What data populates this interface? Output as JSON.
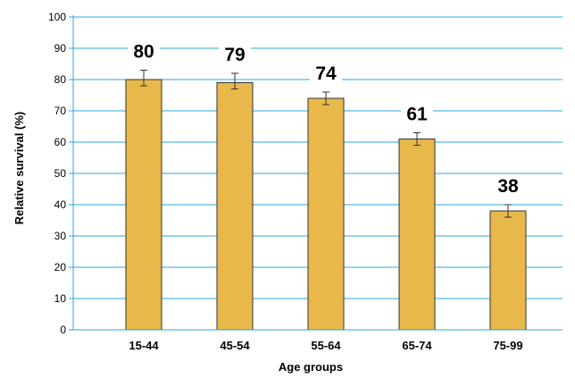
{
  "chart_data": {
    "type": "bar",
    "categories": [
      "15-44",
      "45-54",
      "55-64",
      "65-74",
      "75-99"
    ],
    "values": [
      80,
      79,
      74,
      61,
      38
    ],
    "value_labels": [
      "80",
      "79",
      "74",
      "61",
      "38"
    ],
    "error_low": [
      78,
      77,
      72,
      59,
      36
    ],
    "error_high": [
      83,
      82,
      76,
      63,
      40
    ],
    "xlabel": "Age groups",
    "ylabel": "Relative survival (%)",
    "ylim": [
      0,
      100
    ],
    "yticks": [
      0,
      10,
      20,
      30,
      40,
      50,
      60,
      70,
      80,
      90,
      100
    ],
    "ytick_labels": [
      "0",
      "10",
      "20",
      "30",
      "40",
      "50",
      "60",
      "70",
      "80",
      "90",
      "100"
    ],
    "grid": true,
    "grid_color": "#29a9e0",
    "bar_color": "#e8b84a",
    "bar_edge_color": "#333333"
  }
}
